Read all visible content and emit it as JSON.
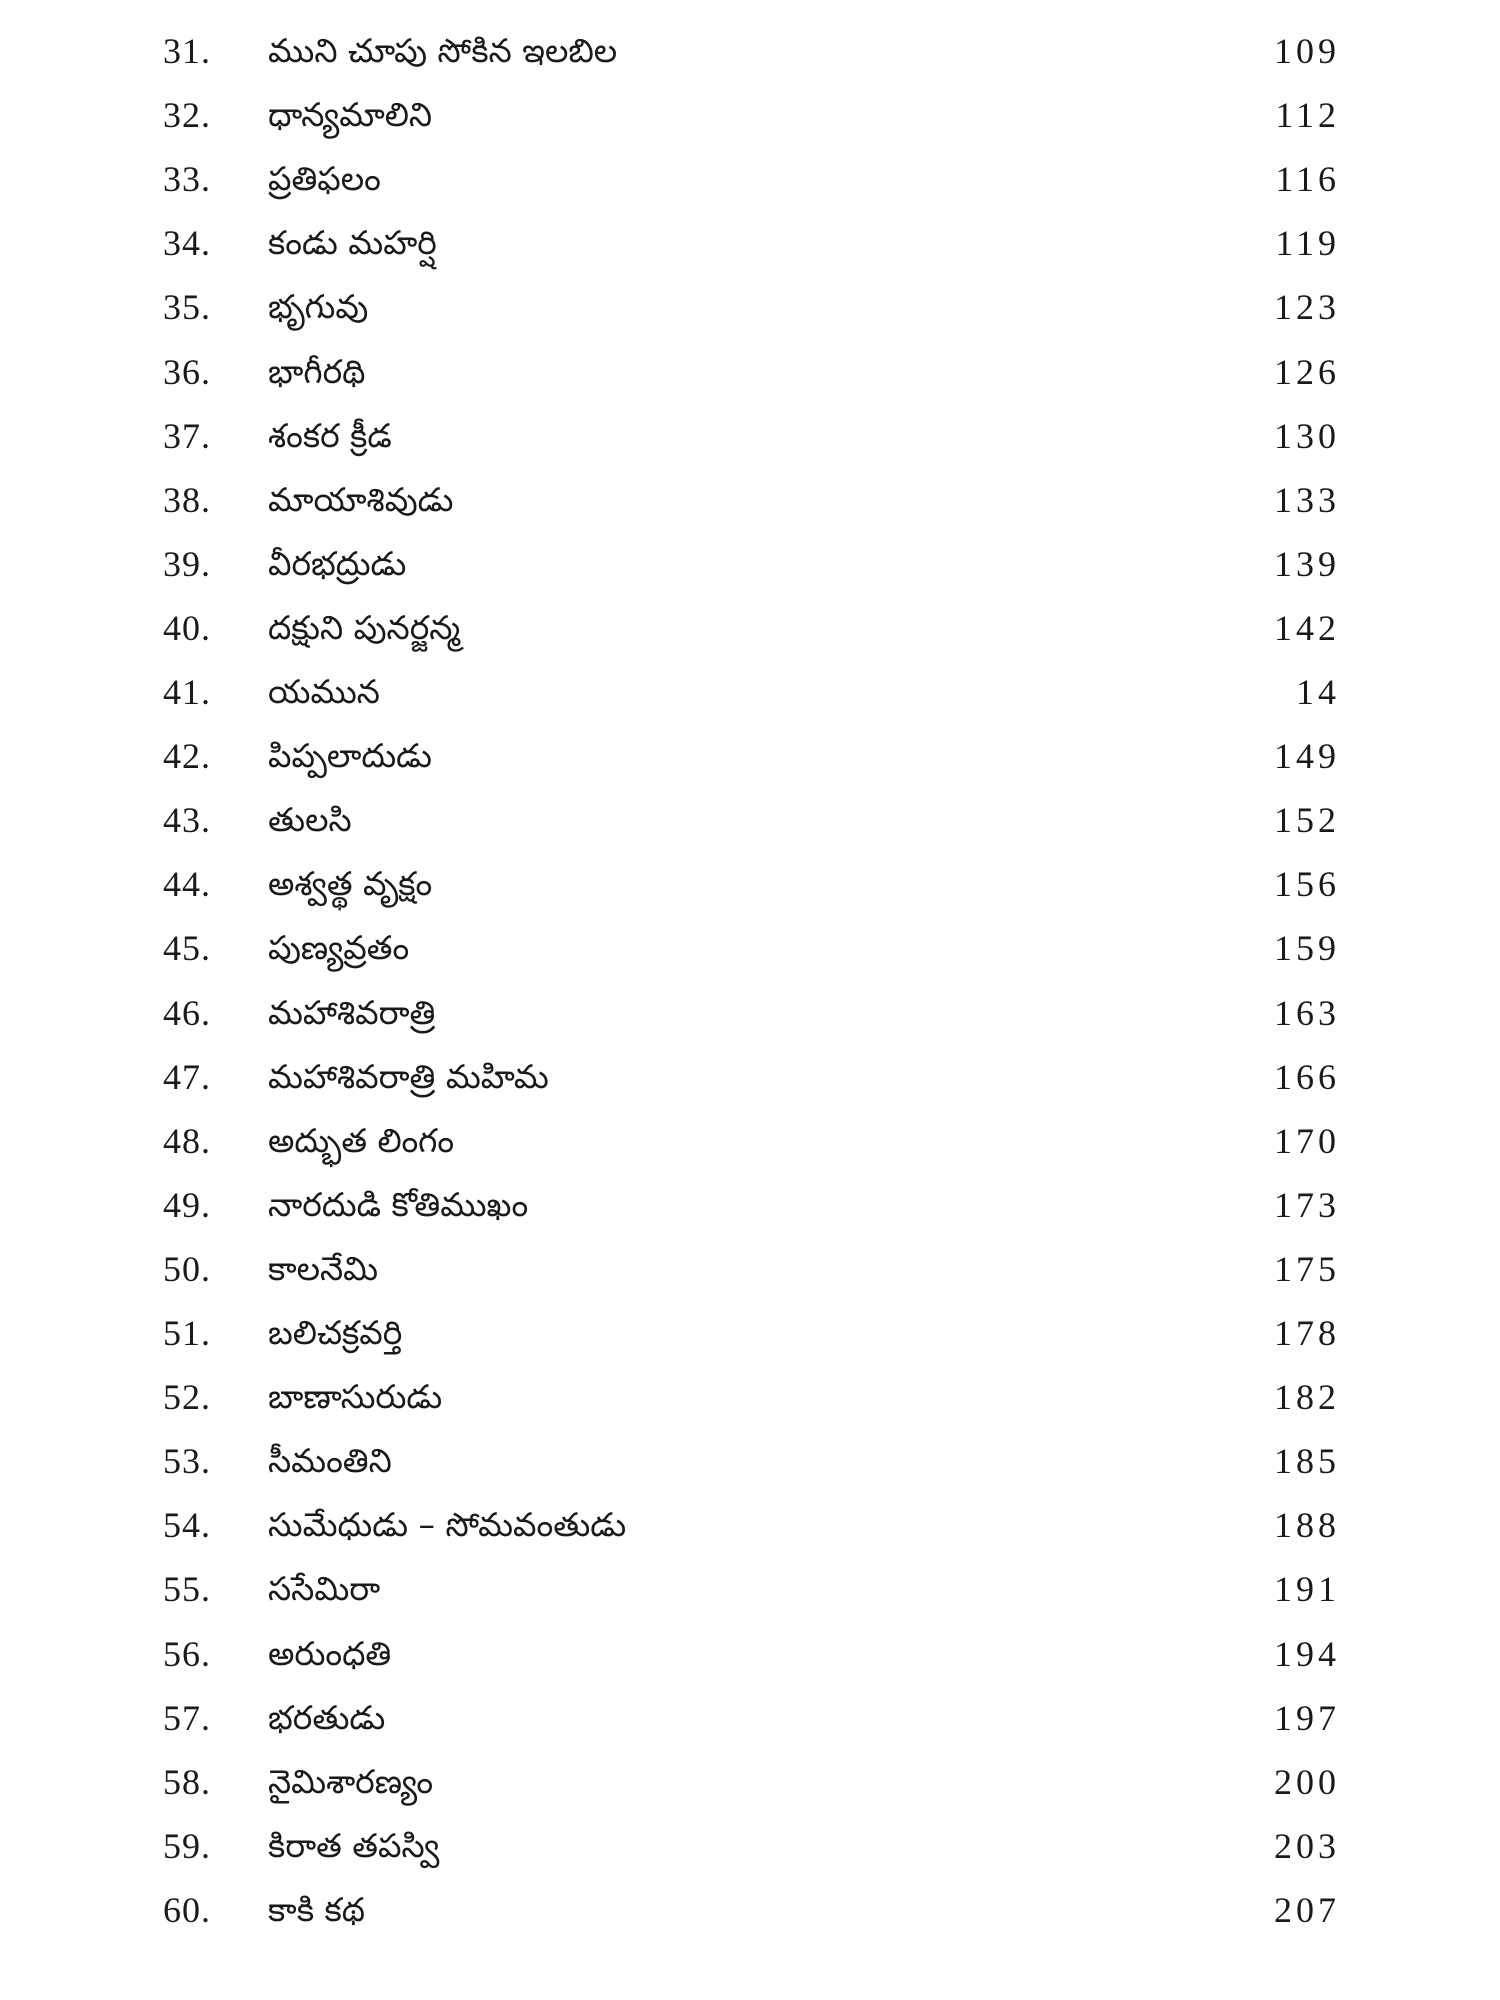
{
  "toc": {
    "entries": [
      {
        "number": "31.",
        "title": "ముని చూపు సోకిన ఇలబిల",
        "page": "109"
      },
      {
        "number": "32.",
        "title": "ధాన్యమాలిని",
        "page": "112"
      },
      {
        "number": "33.",
        "title": "ప్రతిఫలం",
        "page": "116"
      },
      {
        "number": "34.",
        "title": "కండు మహర్షి",
        "page": "119"
      },
      {
        "number": "35.",
        "title": "భృగువు",
        "page": "123"
      },
      {
        "number": "36.",
        "title": "భాగీరథి",
        "page": "126"
      },
      {
        "number": "37.",
        "title": "శంకర క్రీడ",
        "page": "130"
      },
      {
        "number": "38.",
        "title": "మాయాశివుడు",
        "page": "133"
      },
      {
        "number": "39.",
        "title": "వీరభద్రుడు",
        "page": "139"
      },
      {
        "number": "40.",
        "title": "దక్షుని పునర్జన్మ",
        "page": "142"
      },
      {
        "number": "41.",
        "title": "యమున",
        "page": "14"
      },
      {
        "number": "42.",
        "title": "పిప్పలాదుడు",
        "page": "149"
      },
      {
        "number": "43.",
        "title": "తులసి",
        "page": "152"
      },
      {
        "number": "44.",
        "title": "అశ్వత్థ వృక్షం",
        "page": "156"
      },
      {
        "number": "45.",
        "title": "పుణ్యవ్రతం",
        "page": "159"
      },
      {
        "number": "46.",
        "title": "మహాశివరాత్రి",
        "page": "163"
      },
      {
        "number": "47.",
        "title": "మహాశివరాత్రి మహిమ",
        "page": "166"
      },
      {
        "number": "48.",
        "title": "అద్భుత లింగం",
        "page": "170"
      },
      {
        "number": "49.",
        "title": "నారదుడి కోతిముఖం",
        "page": "173"
      },
      {
        "number": "50.",
        "title": "కాలనేమి",
        "page": "175"
      },
      {
        "number": "51.",
        "title": "బలిచక్రవర్తి",
        "page": "178"
      },
      {
        "number": "52.",
        "title": "బాణాసురుడు",
        "page": "182"
      },
      {
        "number": "53.",
        "title": "సీమంతిని",
        "page": "185"
      },
      {
        "number": "54.",
        "title": "సుమేధుడు – సోమవంతుడు",
        "page": "188"
      },
      {
        "number": "55.",
        "title": "ససేమిరా",
        "page": "191"
      },
      {
        "number": "56.",
        "title": "అరుంధతి",
        "page": "194"
      },
      {
        "number": "57.",
        "title": "భరతుడు",
        "page": "197"
      },
      {
        "number": "58.",
        "title": "నైమిశారణ్యం",
        "page": "200"
      },
      {
        "number": "59.",
        "title": "కిరాత తపస్వి",
        "page": "203"
      },
      {
        "number": "60.",
        "title": "కాకి కథ",
        "page": "207"
      }
    ]
  }
}
